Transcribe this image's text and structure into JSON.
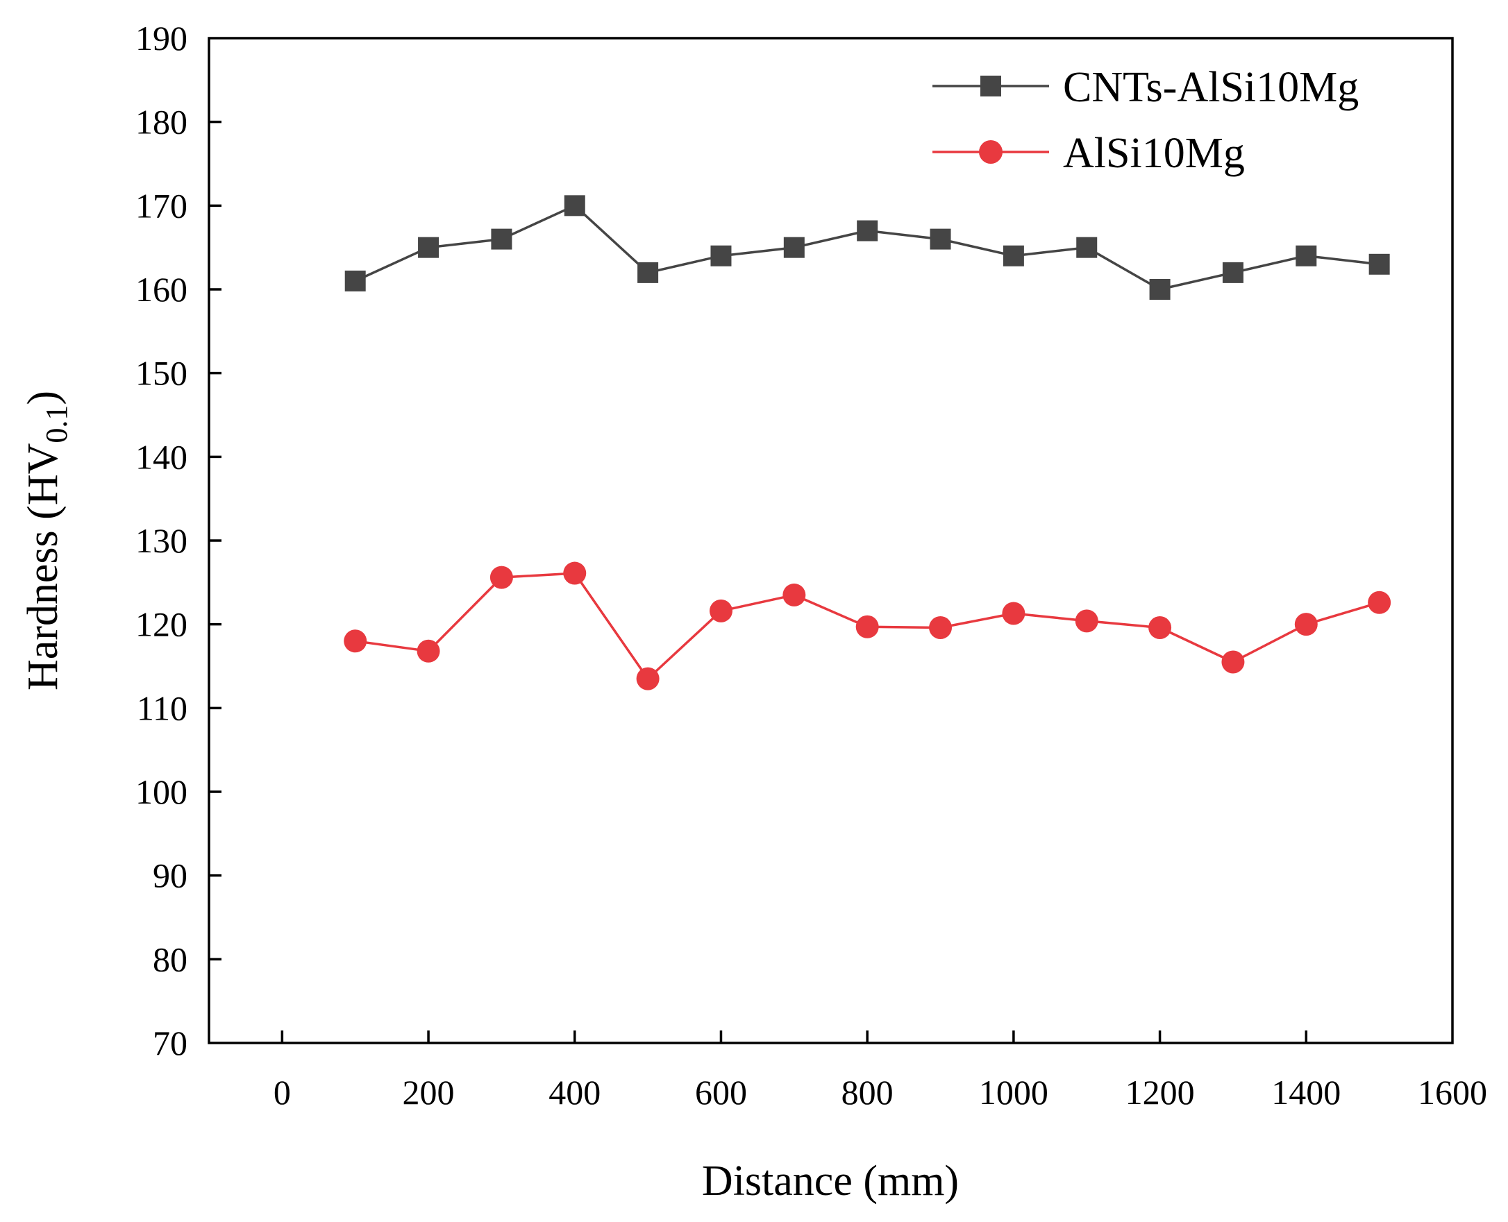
{
  "chart_data": {
    "type": "line",
    "title": "",
    "xlabel": "Distance (mm)",
    "ylabel": {
      "main": "Hardness (HV",
      "subscript": "0.1",
      "close": ")"
    },
    "xlim": [
      -100,
      1600
    ],
    "ylim": [
      70,
      190
    ],
    "xticks": [
      0,
      200,
      400,
      600,
      800,
      1000,
      1200,
      1400,
      1600
    ],
    "yticks": [
      70,
      80,
      90,
      100,
      110,
      120,
      130,
      140,
      150,
      160,
      170,
      180,
      190
    ],
    "grid": false,
    "legend_position": "top-right",
    "x": [
      100,
      200,
      300,
      400,
      500,
      600,
      700,
      800,
      900,
      1000,
      1100,
      1200,
      1300,
      1400,
      1500
    ],
    "series": [
      {
        "name": "CNTs-AlSi10Mg",
        "color": "#454545",
        "marker": "square",
        "values": [
          161,
          165,
          166,
          170,
          162,
          164,
          165,
          167,
          166,
          164,
          165,
          160,
          162,
          164,
          163
        ]
      },
      {
        "name": "AlSi10Mg",
        "color": "#e8393f",
        "marker": "circle",
        "values": [
          118.0,
          116.8,
          125.6,
          126.1,
          113.5,
          121.6,
          123.5,
          119.7,
          119.6,
          121.3,
          120.4,
          119.6,
          115.5,
          120.0,
          122.6
        ]
      }
    ]
  }
}
